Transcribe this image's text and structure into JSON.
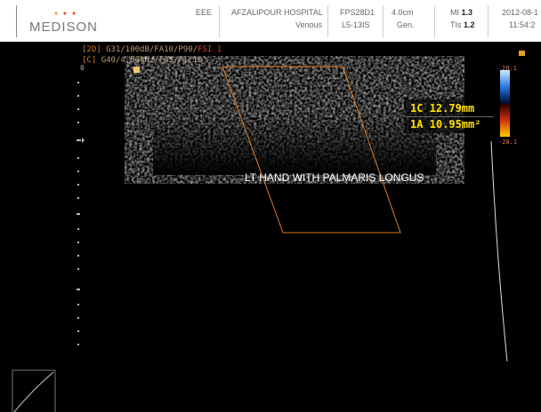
{
  "header": {
    "brand": "MEDISON",
    "operator": "EEE",
    "hospital": "AFZALIPOUR HOSPITAL",
    "preset": "Venous",
    "frame_rate": "FPS28D1",
    "probe": "L5-13IS",
    "depth": "4.0cm",
    "mode": "Gen.",
    "mi_label": "MI",
    "mi_value": "1.3",
    "tis_label": "TIs",
    "tis_value": "1.2",
    "date": "2012-08-1",
    "time": "11:54:2"
  },
  "settings": {
    "b_tag": "[2D]",
    "b_params": "G31/100dB/FA10/P90/",
    "b_fsi": "FSI 1",
    "c_tag": "[C]",
    "c_params": "G40/4.50kHz/FA5/F1/10"
  },
  "scale": {
    "zero": "0",
    "top": "28.1",
    "bottom": "-28.1"
  },
  "measurements": [
    {
      "id": "1C",
      "value": "12.79mm"
    },
    {
      "id": "1A",
      "value": "10.95mm²"
    }
  ],
  "annotation": "LT HAND WITH PALMARIS LONGUS"
}
